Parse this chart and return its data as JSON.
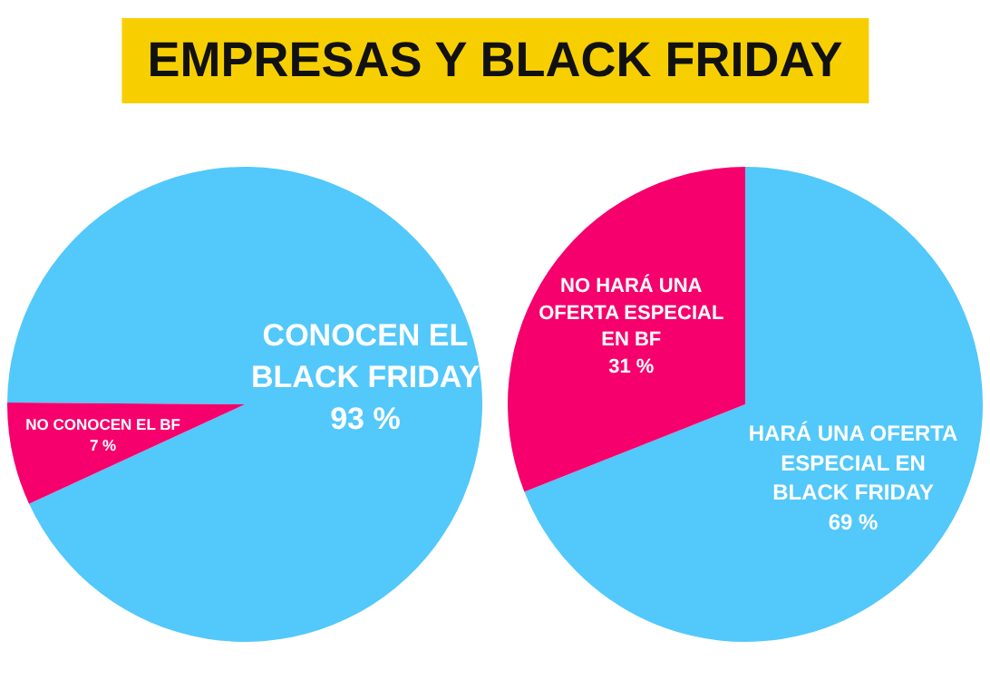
{
  "chart_data": [
    {
      "type": "pie",
      "title": "EMPRESAS Y BLACK FRIDAY",
      "categories": [
        "CONOCEN EL BLACK FRIDAY",
        "NO CONOCEN EL BF"
      ],
      "values": [
        93,
        7
      ],
      "value_labels": [
        "93 %",
        "7 %"
      ],
      "colors": [
        "#52c8fb",
        "#f5006c"
      ],
      "legend": false
    },
    {
      "type": "pie",
      "categories": [
        "HARÁ UNA OFERTA ESPECIAL EN BLACK FRIDAY",
        "NO HARÁ UNA OFERTA ESPECIAL EN BF"
      ],
      "values": [
        69,
        31
      ],
      "value_labels": [
        "69 %",
        "31 %"
      ],
      "colors": [
        "#52c8fb",
        "#f5006c"
      ],
      "legend": false
    }
  ]
}
